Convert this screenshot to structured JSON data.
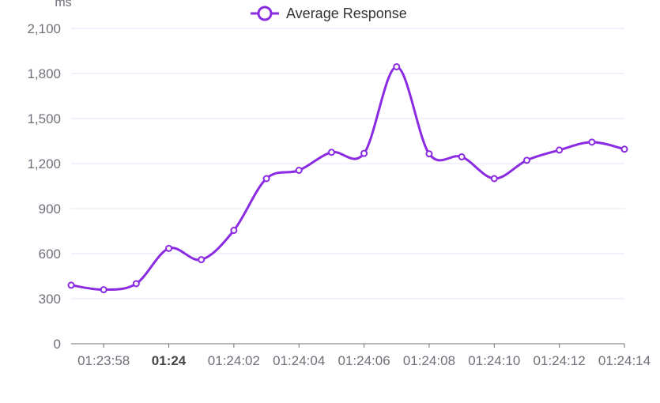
{
  "chart_data": {
    "type": "line",
    "smooth": true,
    "ylabel": "ms",
    "ylim": [
      0,
      2100
    ],
    "y_ticks": [
      0,
      300,
      600,
      900,
      1200,
      1500,
      1800,
      2100
    ],
    "y_tick_labels": [
      "0",
      "300",
      "600",
      "900",
      "1,200",
      "1,500",
      "1,800",
      "2,100"
    ],
    "x": [
      "01:23:57",
      "01:23:58",
      "01:23:59",
      "01:24:00",
      "01:24:01",
      "01:24:02",
      "01:24:03",
      "01:24:04",
      "01:24:05",
      "01:24:06",
      "01:24:07",
      "01:24:08",
      "01:24:09",
      "01:24:10",
      "01:24:11",
      "01:24:12",
      "01:24:13",
      "01:24:14"
    ],
    "x_tick_labels": [
      {
        "label": "01:23:58",
        "index": 1,
        "bold": false
      },
      {
        "label": "01:24",
        "index": 3,
        "bold": true
      },
      {
        "label": "01:24:02",
        "index": 5,
        "bold": false
      },
      {
        "label": "01:24:04",
        "index": 7,
        "bold": false
      },
      {
        "label": "01:24:06",
        "index": 9,
        "bold": false
      },
      {
        "label": "01:24:08",
        "index": 11,
        "bold": false
      },
      {
        "label": "01:24:10",
        "index": 13,
        "bold": false
      },
      {
        "label": "01:24:12",
        "index": 15,
        "bold": false
      },
      {
        "label": "01:24:14",
        "index": 17,
        "bold": false
      }
    ],
    "grid": true,
    "legend_position": "top-center",
    "series": [
      {
        "name": "Average Response",
        "color": "#8a2be2",
        "values": [
          390,
          360,
          400,
          635,
          560,
          755,
          1100,
          1155,
          1275,
          1268,
          1845,
          1265,
          1245,
          1100,
          1222,
          1290,
          1343,
          1296
        ]
      }
    ]
  }
}
